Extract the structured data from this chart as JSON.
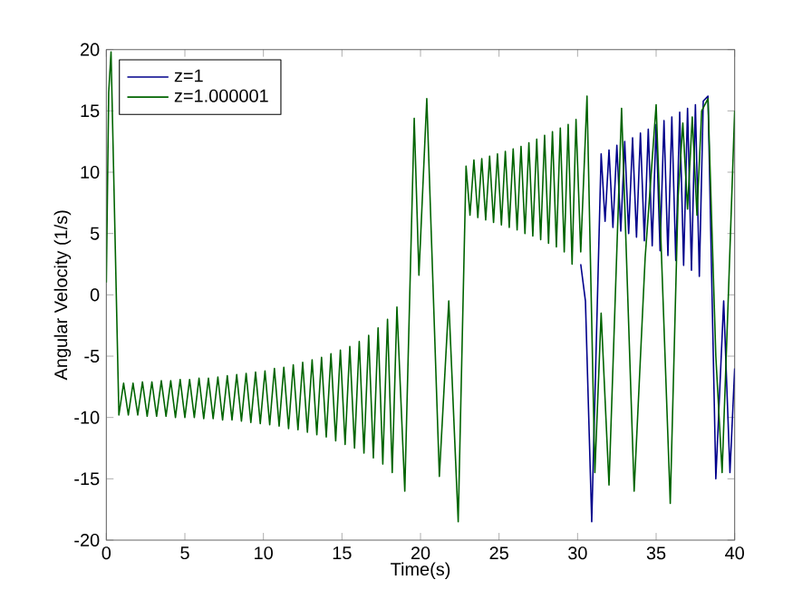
{
  "chart_data": {
    "type": "line",
    "xlabel": "Time(s)",
    "ylabel": "Angular Velocity (1/s)",
    "xlim": [
      0,
      40
    ],
    "ylim": [
      -20,
      20
    ],
    "xticks": [
      0,
      5,
      10,
      15,
      20,
      25,
      30,
      35,
      40
    ],
    "yticks": [
      -20,
      -15,
      -10,
      -5,
      0,
      5,
      10,
      15,
      20
    ],
    "legend": "top left",
    "series": [
      {
        "name": "z=1",
        "color": "#00008b",
        "x": [
          30.2,
          30.5,
          30.9,
          31.5,
          31.75,
          32.0,
          32.25,
          32.5,
          32.75,
          33.0,
          33.25,
          33.5,
          33.75,
          34.0,
          34.25,
          34.5,
          34.75,
          35.0,
          35.25,
          35.5,
          35.75,
          36.0,
          36.25,
          36.5,
          36.75,
          37.0,
          37.25,
          37.5,
          37.75,
          38.0,
          38.3,
          38.8,
          39.3,
          39.7,
          40.0
        ],
        "values": [
          2.5,
          -0.5,
          -18.5,
          11.5,
          6.0,
          11.8,
          5.5,
          12.2,
          5.2,
          12.5,
          5.0,
          12.8,
          4.7,
          13.2,
          4.4,
          13.5,
          4.0,
          13.9,
          3.6,
          14.2,
          3.2,
          14.5,
          2.8,
          14.9,
          2.4,
          15.2,
          2.0,
          15.5,
          1.5,
          15.8,
          16.2,
          -15.0,
          -0.5,
          -14.5,
          -6.0
        ]
      },
      {
        "name": "z=1.000001",
        "color": "#006400",
        "x": [
          0,
          0.15,
          0.3,
          0.8,
          1.1,
          1.4,
          1.7,
          2.0,
          2.3,
          2.6,
          2.9,
          3.2,
          3.5,
          3.8,
          4.1,
          4.4,
          4.7,
          5.0,
          5.3,
          5.6,
          5.9,
          6.2,
          6.5,
          6.8,
          7.1,
          7.4,
          7.7,
          8.0,
          8.3,
          8.6,
          8.9,
          9.2,
          9.5,
          9.8,
          10.1,
          10.4,
          10.7,
          11.0,
          11.3,
          11.6,
          11.9,
          12.2,
          12.5,
          12.8,
          13.1,
          13.4,
          13.7,
          14.0,
          14.3,
          14.6,
          14.9,
          15.2,
          15.5,
          15.8,
          16.1,
          16.4,
          16.7,
          17.0,
          17.3,
          17.6,
          17.9,
          18.2,
          18.5,
          19.0,
          19.6,
          19.9,
          20.4,
          21.2,
          21.8,
          22.4,
          22.9,
          23.15,
          23.4,
          23.65,
          23.9,
          24.15,
          24.4,
          24.65,
          24.9,
          25.15,
          25.4,
          25.65,
          25.9,
          26.15,
          26.4,
          26.65,
          26.9,
          27.15,
          27.4,
          27.65,
          27.9,
          28.15,
          28.4,
          28.65,
          28.9,
          29.15,
          29.4,
          29.65,
          29.9,
          30.2,
          30.6,
          31.1,
          31.5,
          32.0,
          32.8,
          33.6,
          34.3,
          35.0,
          35.9,
          36.4,
          36.7,
          37.0,
          37.3,
          37.6,
          37.9,
          38.3,
          38.8,
          39.2,
          39.6,
          40.0
        ],
        "values": [
          1,
          16.5,
          19.8,
          -9.8,
          -7.2,
          -9.8,
          -7.2,
          -9.8,
          -7.1,
          -9.9,
          -7.1,
          -9.9,
          -7.0,
          -9.9,
          -7.0,
          -10.0,
          -6.9,
          -10.0,
          -6.9,
          -10.0,
          -6.8,
          -10.1,
          -6.8,
          -10.1,
          -6.7,
          -10.2,
          -6.6,
          -10.2,
          -6.5,
          -10.3,
          -6.4,
          -10.4,
          -6.3,
          -10.5,
          -6.2,
          -10.6,
          -6.0,
          -10.7,
          -5.9,
          -10.9,
          -5.7,
          -11.0,
          -5.5,
          -11.2,
          -5.3,
          -11.4,
          -5.1,
          -11.6,
          -4.8,
          -11.9,
          -4.5,
          -12.2,
          -4.2,
          -12.5,
          -3.8,
          -12.9,
          -3.3,
          -13.3,
          -2.7,
          -13.8,
          -2.0,
          -14.5,
          -1.0,
          -16.0,
          14.4,
          1.6,
          16.0,
          -14.8,
          -0.5,
          -18.5,
          10.5,
          6.5,
          11.0,
          6.3,
          11.1,
          6.1,
          11.3,
          5.9,
          11.5,
          5.7,
          11.7,
          5.5,
          11.9,
          5.3,
          12.1,
          5.0,
          12.4,
          4.8,
          12.7,
          4.5,
          13.0,
          4.2,
          13.3,
          3.9,
          13.6,
          3.5,
          13.9,
          2.5,
          14.3,
          3.5,
          16.2,
          -14.5,
          -1.5,
          -15.5,
          15.2,
          -16.0,
          3.0,
          15.5,
          -17.0,
          8.0,
          14.0,
          7.0,
          14.5,
          6.5,
          15.0,
          16.0,
          -5.0,
          -14.5,
          0.0,
          15.0
        ]
      }
    ]
  }
}
